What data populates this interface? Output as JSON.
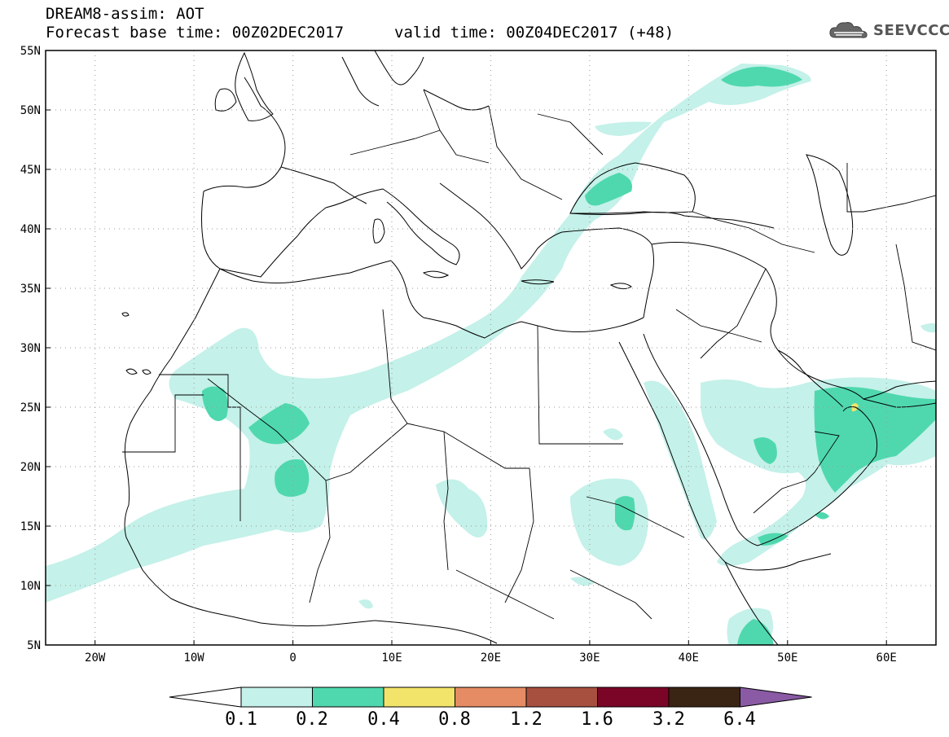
{
  "title": {
    "line1": "DREAM8-assim: AOT",
    "line2": "Forecast base time: 00Z02DEC2017",
    "valid": "valid time: 00Z04DEC2017 (+48)"
  },
  "logo": {
    "text": "SEEVCCC",
    "icon": "cloud-icon"
  },
  "map": {
    "projection": "lat-lon",
    "lon_range": [
      -25,
      65
    ],
    "lat_range": [
      5,
      55
    ],
    "lon_ticks": [
      "20W",
      "10W",
      "0",
      "10E",
      "20E",
      "30E",
      "40E",
      "50E",
      "60E"
    ],
    "lat_ticks": [
      "55N",
      "50N",
      "45N",
      "40N",
      "35N",
      "30N",
      "25N",
      "20N",
      "15N",
      "10N",
      "5N"
    ],
    "grid": "dotted"
  },
  "colorbar": {
    "levels": [
      "0.1",
      "0.2",
      "0.4",
      "0.8",
      "1.2",
      "1.6",
      "3.2",
      "6.4"
    ],
    "colors": [
      "#ffffff",
      "#c4f1e9",
      "#4fd8ae",
      "#f2e46a",
      "#e58c64",
      "#a85040",
      "#7a0526",
      "#3a2414",
      "#8a5aa4"
    ]
  }
}
